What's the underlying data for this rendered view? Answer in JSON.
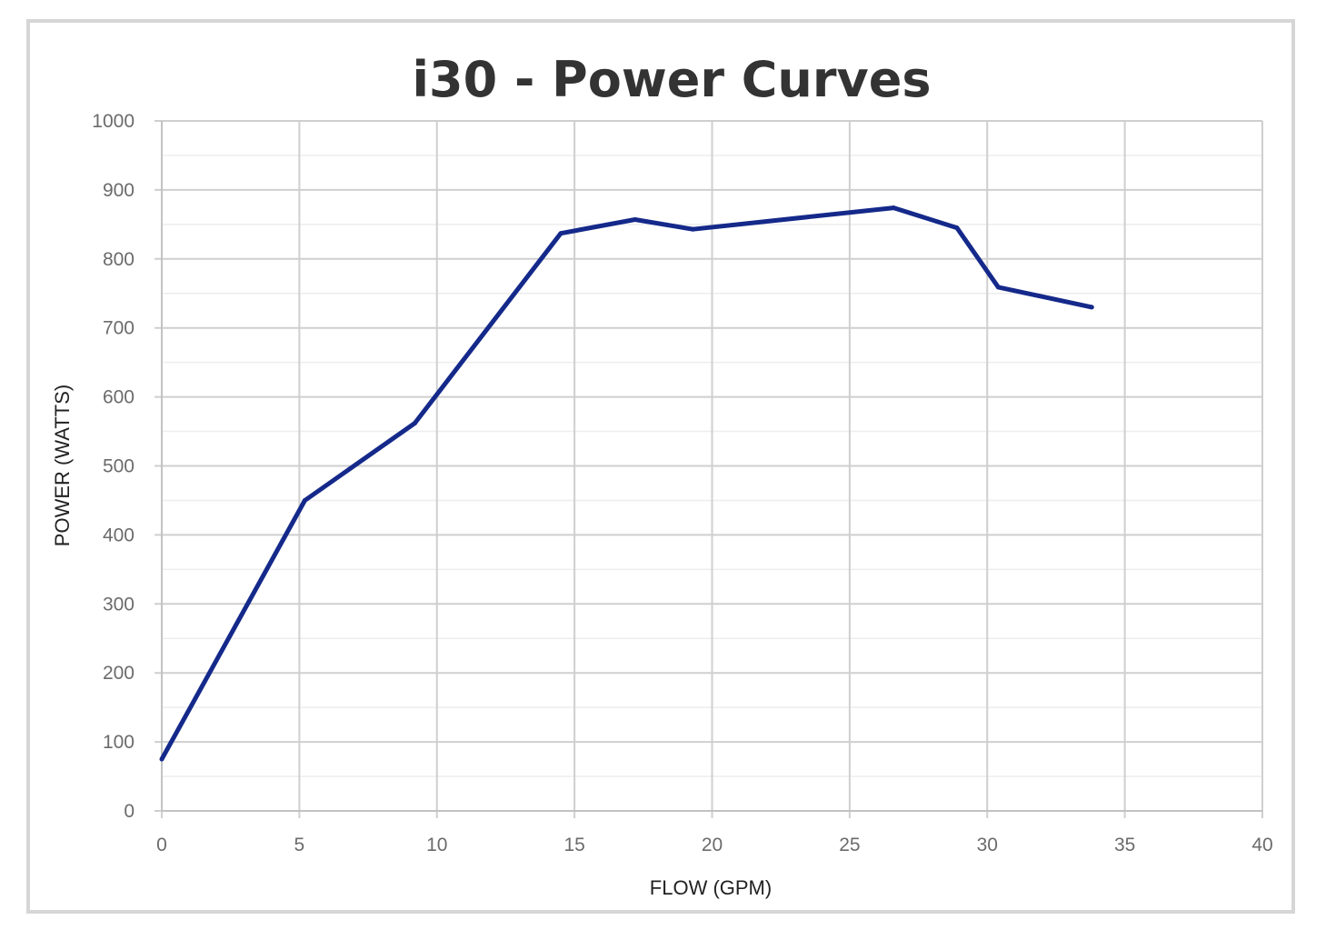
{
  "chart_data": {
    "type": "line",
    "title": "i30 - Power Curves",
    "xlabel": "FLOW (GPM)",
    "ylabel": "POWER (WATTS)",
    "xlim": [
      0,
      40
    ],
    "ylim": [
      0,
      1000
    ],
    "x_ticks": [
      0,
      5,
      10,
      15,
      20,
      25,
      30,
      35,
      40
    ],
    "y_ticks": [
      0,
      100,
      200,
      300,
      400,
      500,
      600,
      700,
      800,
      900,
      1000
    ],
    "grid": true,
    "legend": "none",
    "series": [
      {
        "color": "#14298a",
        "points": [
          [
            0,
            75
          ],
          [
            5.2,
            450
          ],
          [
            9.2,
            562
          ],
          [
            14.5,
            837
          ],
          [
            17.2,
            857
          ],
          [
            19.3,
            843
          ],
          [
            26.6,
            874
          ],
          [
            28.9,
            845
          ],
          [
            30.4,
            759
          ],
          [
            33.8,
            730
          ]
        ]
      }
    ]
  }
}
